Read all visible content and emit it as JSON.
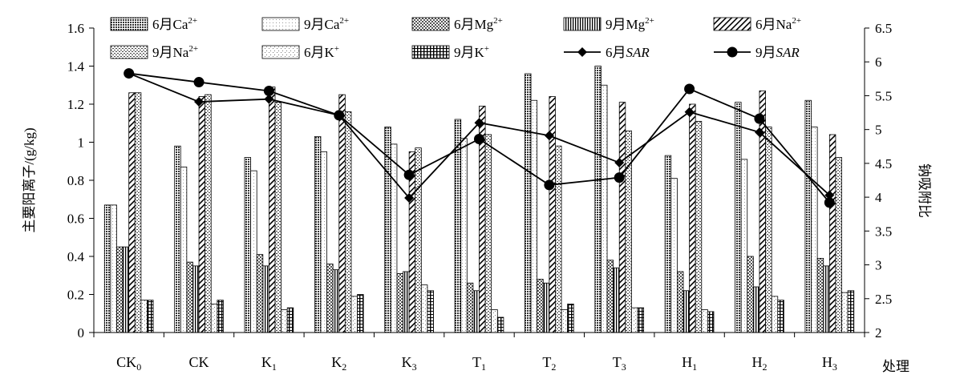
{
  "chart_data": {
    "type": "bar",
    "xlabel": "处理",
    "ylabel": "主要阳离子/(g/kg)",
    "y2label": "钠吸附比",
    "ylim": [
      0,
      1.6
    ],
    "y2lim": [
      2,
      6.5
    ],
    "yticks": [
      "0",
      "0.2",
      "0.4",
      "0.6",
      "0.8",
      "1",
      "1.2",
      "1.4",
      "1.6"
    ],
    "y2ticks": [
      "2",
      "2.5",
      "3",
      "3.5",
      "4",
      "4.5",
      "5",
      "5.5",
      "6",
      "6.5"
    ],
    "categories": [
      {
        "main": "CK",
        "sub": "0"
      },
      {
        "main": "CK",
        "sub": ""
      },
      {
        "main": "K",
        "sub": "1"
      },
      {
        "main": "K",
        "sub": "2"
      },
      {
        "main": "K",
        "sub": "3"
      },
      {
        "main": "T",
        "sub": "1"
      },
      {
        "main": "T",
        "sub": "2"
      },
      {
        "main": "T",
        "sub": "3"
      },
      {
        "main": "H",
        "sub": "1"
      },
      {
        "main": "H",
        "sub": "2"
      },
      {
        "main": "H",
        "sub": "3"
      }
    ],
    "bar_series": [
      {
        "name": "6月Ca²⁺",
        "pattern": "p-ca6",
        "values": [
          0.67,
          0.98,
          0.92,
          1.03,
          1.08,
          1.12,
          1.36,
          1.4,
          0.93,
          1.21,
          1.22
        ]
      },
      {
        "name": "9月Ca²⁺",
        "pattern": "p-ca9",
        "values": [
          0.67,
          0.87,
          0.85,
          0.95,
          0.99,
          1.02,
          1.22,
          1.3,
          0.81,
          0.91,
          1.08
        ]
      },
      {
        "name": "6月Mg²⁺",
        "pattern": "p-mg6",
        "values": [
          0.45,
          0.37,
          0.41,
          0.36,
          0.31,
          0.26,
          0.28,
          0.38,
          0.32,
          0.4,
          0.39
        ]
      },
      {
        "name": "9月Mg²⁺",
        "pattern": "p-mg9",
        "values": [
          0.45,
          0.35,
          0.35,
          0.33,
          0.32,
          0.22,
          0.26,
          0.34,
          0.22,
          0.24,
          0.35
        ]
      },
      {
        "name": "6月Na²⁺",
        "pattern": "p-na6",
        "values": [
          1.26,
          1.24,
          1.29,
          1.25,
          0.95,
          1.19,
          1.24,
          1.21,
          1.2,
          1.27,
          1.04
        ]
      },
      {
        "name": "9月Na²⁺",
        "pattern": "p-na9",
        "values": [
          1.26,
          1.25,
          1.21,
          1.16,
          0.97,
          1.04,
          0.98,
          1.06,
          1.11,
          1.08,
          0.92
        ]
      },
      {
        "name": "6月K⁺",
        "pattern": "p-k6",
        "values": [
          0.17,
          0.15,
          0.12,
          0.19,
          0.25,
          0.12,
          0.12,
          0.13,
          0.12,
          0.19,
          0.21
        ]
      },
      {
        "name": "9月K⁺",
        "pattern": "p-k9",
        "values": [
          0.17,
          0.17,
          0.13,
          0.2,
          0.22,
          0.08,
          0.15,
          0.13,
          0.11,
          0.17,
          0.22
        ]
      }
    ],
    "line_series": [
      {
        "name": "6月SAR",
        "marker": "diamond",
        "values": [
          5.83,
          5.41,
          5.45,
          5.21,
          3.99,
          5.1,
          4.91,
          4.51,
          5.26,
          4.96,
          4.03
        ]
      },
      {
        "name": "9月SAR",
        "marker": "circle",
        "values": [
          5.83,
          5.7,
          5.57,
          5.21,
          4.33,
          4.86,
          4.18,
          4.29,
          5.6,
          5.16,
          3.92
        ]
      }
    ],
    "legend": [
      {
        "label": "6月Ca",
        "sup": "2+",
        "kind": "bar",
        "pattern": "p-ca6"
      },
      {
        "label": "9月Ca",
        "sup": "2+",
        "kind": "bar",
        "pattern": "p-ca9"
      },
      {
        "label": "6月Mg",
        "sup": "2+",
        "kind": "bar",
        "pattern": "p-mg6"
      },
      {
        "label": "9月Mg",
        "sup": "2+",
        "kind": "bar",
        "pattern": "p-mg9"
      },
      {
        "label": "6月Na",
        "sup": "2+",
        "kind": "bar",
        "pattern": "p-na6"
      },
      {
        "label": "9月Na",
        "sup": "2+",
        "kind": "bar",
        "pattern": "p-na9"
      },
      {
        "label": "6月K",
        "sup": "+",
        "kind": "bar",
        "pattern": "p-k6"
      },
      {
        "label": "9月K",
        "sup": "+",
        "kind": "bar",
        "pattern": "p-k9"
      },
      {
        "label": "6月",
        "italic": "SAR",
        "kind": "line",
        "marker": "diamond"
      },
      {
        "label": "9月",
        "italic": "SAR",
        "kind": "line",
        "marker": "circle"
      }
    ]
  }
}
